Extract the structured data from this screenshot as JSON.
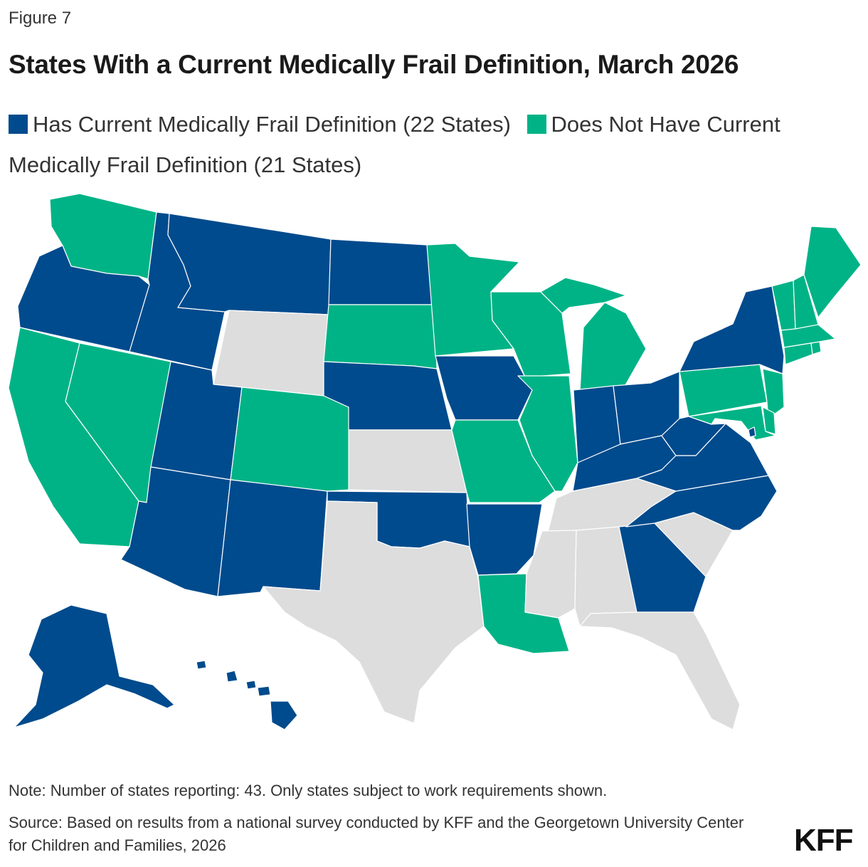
{
  "figure_label": "Figure 7",
  "title": "States With a Current Medically Frail Definition, March 2026",
  "legend": [
    {
      "label": "Has Current Medically Frail Definition (22 States)",
      "color": "#004b8d"
    },
    {
      "label": "Does Not Have Current Medically Frail Definition (21 States)",
      "color": "#00b386"
    }
  ],
  "not_shown_color": "#dddddd",
  "note": "Note: Number of states reporting: 43. Only states subject to work requirements shown.",
  "source": "Source: Based on results from a national survey conducted by KFF and the Georgetown University Center for Children and Families, 2026",
  "logo": "KFF",
  "states": {
    "has_definition": [
      "OR",
      "ID",
      "MT",
      "ND",
      "NE",
      "UT",
      "AZ",
      "NM",
      "OK",
      "AR",
      "IA",
      "IN",
      "OH",
      "KY",
      "WV",
      "VA",
      "NC",
      "GA",
      "NY",
      "DC",
      "AK",
      "HI"
    ],
    "no_definition": [
      "WA",
      "CA",
      "NV",
      "CO",
      "SD",
      "MN",
      "WI",
      "MI",
      "IL",
      "MO",
      "LA",
      "PA",
      "NJ",
      "DE",
      "MD",
      "CT",
      "RI",
      "MA",
      "VT",
      "NH",
      "ME"
    ],
    "not_shown": [
      "WY",
      "KS",
      "TX",
      "TN",
      "MS",
      "AL",
      "SC",
      "FL"
    ]
  }
}
